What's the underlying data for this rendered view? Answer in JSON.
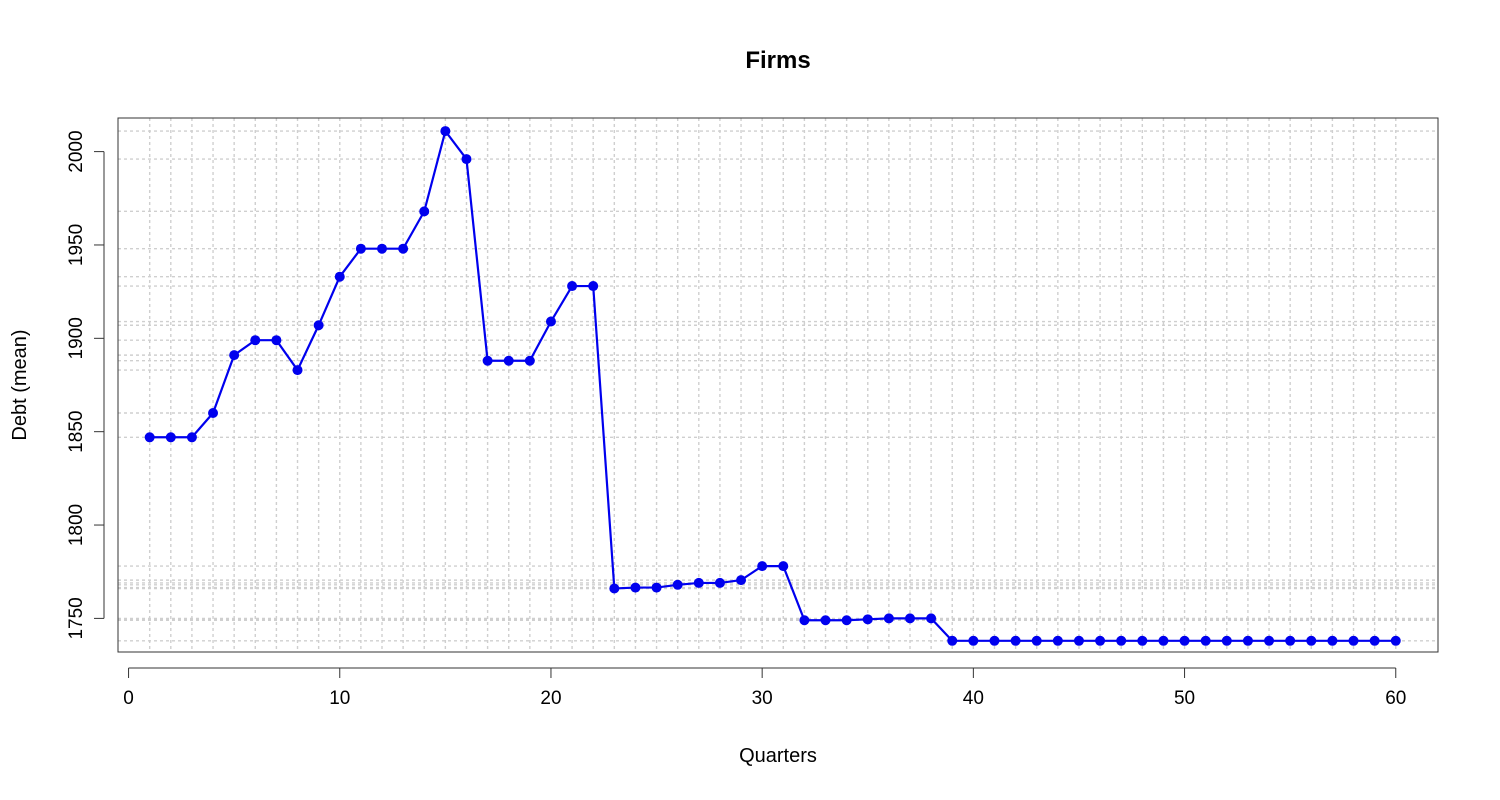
{
  "chart_data": {
    "type": "line",
    "title": "Firms",
    "xlabel": "Quarters",
    "ylabel": "Debt (mean)",
    "xlim": [
      -0.5,
      62.0
    ],
    "ylim": [
      1732,
      2018
    ],
    "x_ticks": [
      0,
      10,
      20,
      30,
      40,
      50,
      60
    ],
    "y_ticks": [
      1750,
      1800,
      1850,
      1900,
      1950,
      2000
    ],
    "grid": true,
    "color": "#0000ee",
    "marker": "filled-circle",
    "series": [
      {
        "x": [
          1,
          2,
          3,
          4,
          5,
          6,
          7,
          8,
          9,
          10,
          11,
          12,
          13,
          14,
          15,
          16,
          17,
          18,
          19,
          20,
          21,
          22,
          23,
          24,
          25,
          26,
          27,
          28,
          29,
          30,
          31,
          32,
          33,
          34,
          35,
          36,
          37,
          38,
          39,
          40,
          41,
          42,
          43,
          44,
          45,
          46,
          47,
          48,
          49,
          50,
          51,
          52,
          53,
          54,
          55,
          56,
          57,
          58,
          59,
          60
        ],
        "values": [
          1847,
          1847,
          1847,
          1860,
          1891,
          1899,
          1899,
          1883,
          1907,
          1933,
          1948,
          1948,
          1948,
          1968,
          2011,
          1996,
          1888,
          1888,
          1888,
          1909,
          1928,
          1928,
          1766,
          1766.5,
          1766.5,
          1768,
          1769,
          1769,
          1770.5,
          1778,
          1778,
          1749,
          1749,
          1749,
          1749.5,
          1750,
          1750,
          1750,
          1738,
          1738,
          1738,
          1738,
          1738,
          1738,
          1738,
          1738,
          1738,
          1738,
          1738,
          1738,
          1738,
          1738,
          1738,
          1738,
          1738,
          1738,
          1738,
          1738,
          1738,
          1738
        ]
      }
    ]
  }
}
